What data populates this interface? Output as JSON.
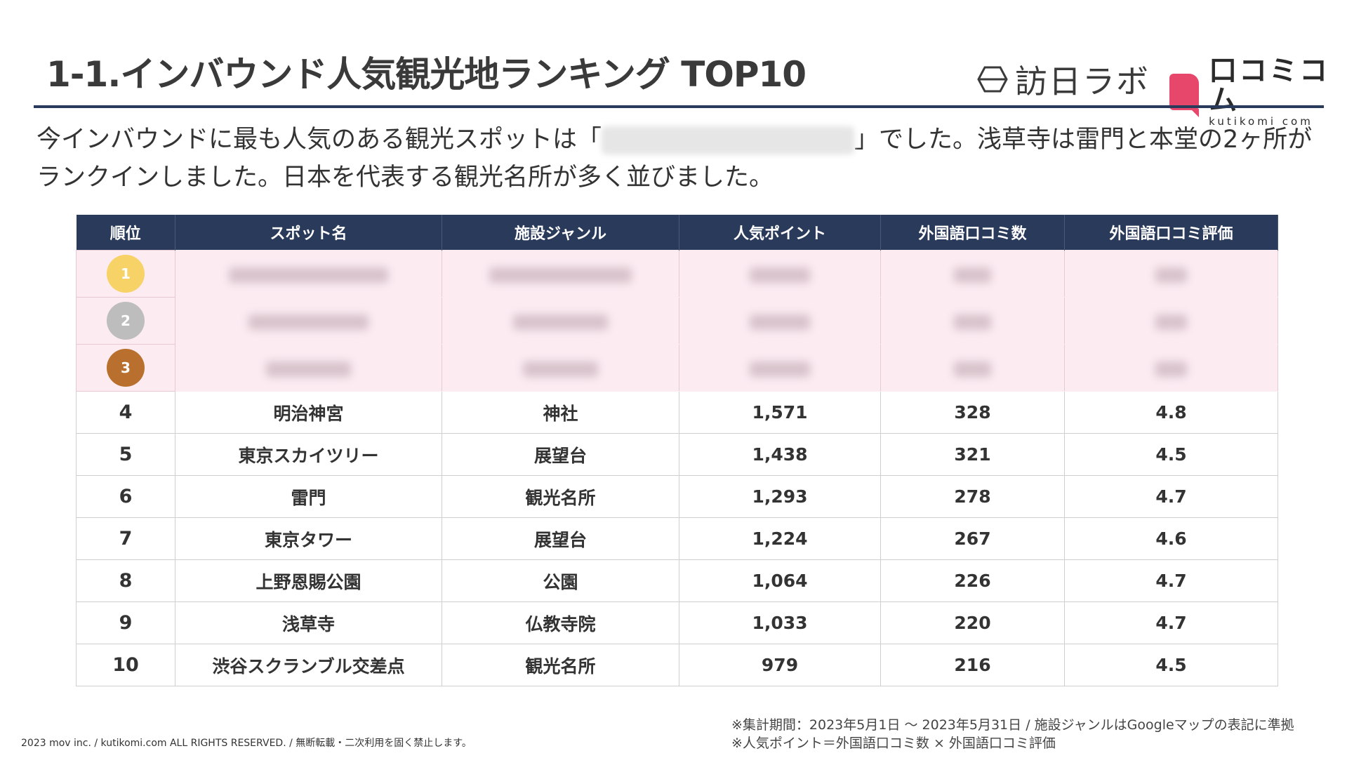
{
  "title": "1-1.インバウンド人気観光地ランキング TOP10",
  "logos": {
    "houjin": "訪日ラボ",
    "kutikomi_jp": "口コミコム",
    "kutikomi_en": "kutikomi com",
    "kutikomi_color": "#e8476c"
  },
  "lead": {
    "part1": "今インバウンドに最も人気のある観光スポットは「",
    "part2": "」でした。浅草寺は雷門と本堂の2ヶ所がランクインしました。日本を代表する観光名所が多く並びました。"
  },
  "table": {
    "headers": [
      "順位",
      "スポット名",
      "施設ジャンル",
      "人気ポイント",
      "外国語口コミ数",
      "外国語口コミ評価"
    ],
    "medals": [
      {
        "rank": "1",
        "color": "#f7d266"
      },
      {
        "rank": "2",
        "color": "#bdbdbd"
      },
      {
        "rank": "3",
        "color": "#b9702f"
      }
    ],
    "rows": [
      {
        "rank": "4",
        "name": "明治神宮",
        "genre": "神社",
        "points": "1,571",
        "reviews": "328",
        "rating": "4.8"
      },
      {
        "rank": "5",
        "name": "東京スカイツリー",
        "genre": "展望台",
        "points": "1,438",
        "reviews": "321",
        "rating": "4.5"
      },
      {
        "rank": "6",
        "name": "雷門",
        "genre": "観光名所",
        "points": "1,293",
        "reviews": "278",
        "rating": "4.7"
      },
      {
        "rank": "7",
        "name": "東京タワー",
        "genre": "展望台",
        "points": "1,224",
        "reviews": "267",
        "rating": "4.6"
      },
      {
        "rank": "8",
        "name": "上野恩賜公園",
        "genre": "公園",
        "points": "1,064",
        "reviews": "226",
        "rating": "4.7"
      },
      {
        "rank": "9",
        "name": "浅草寺",
        "genre": "仏教寺院",
        "points": "1,033",
        "reviews": "220",
        "rating": "4.7"
      },
      {
        "rank": "10",
        "name": "渋谷スクランブル交差点",
        "genre": "観光名所",
        "points": "979",
        "reviews": "216",
        "rating": "4.5"
      }
    ]
  },
  "footer": {
    "copyright": "2023 mov inc. / kutikomi.com ALL RIGHTS RESERVED. / 無断転載・二次利用を固く禁止します。",
    "note1": "※集計期間：2023年5月1日 〜 2023年5月31日 / 施設ジャンルはGoogleマップの表記に準拠",
    "note2": "※人気ポイント＝外国語口コミ数 × 外国語口コミ評価"
  }
}
